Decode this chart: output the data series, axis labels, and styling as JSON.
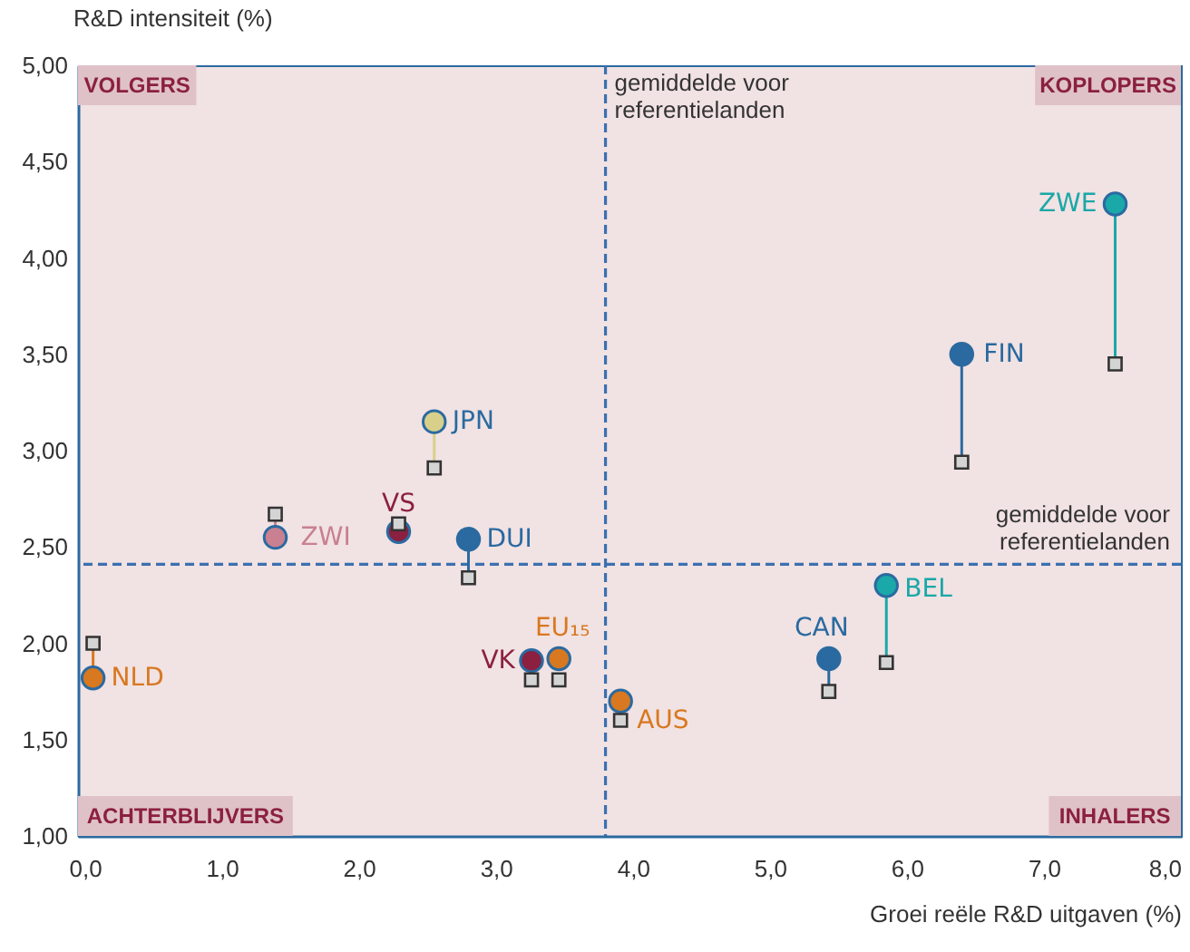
{
  "chart_data": {
    "type": "scatter",
    "xlabel": "Groei reële R&D uitgaven (%)",
    "ylabel": "R&D intensiteit (%)",
    "xlim": [
      -0.05,
      8.0
    ],
    "ylim": [
      1.0,
      5.0
    ],
    "xticks": [
      {
        "value": 0,
        "label": "0,0"
      },
      {
        "value": 1,
        "label": "1,0"
      },
      {
        "value": 2,
        "label": "2,0"
      },
      {
        "value": 3,
        "label": "3,0"
      },
      {
        "value": 4,
        "label": "4,0"
      },
      {
        "value": 5,
        "label": "5,0"
      },
      {
        "value": 6,
        "label": "6,0"
      },
      {
        "value": 7,
        "label": "7,0"
      },
      {
        "value": 8,
        "label": "8,0"
      }
    ],
    "yticks": [
      {
        "value": 1,
        "label": "1,00"
      },
      {
        "value": 1.5,
        "label": "1,50"
      },
      {
        "value": 2,
        "label": "2,00"
      },
      {
        "value": 2.5,
        "label": "2,50"
      },
      {
        "value": 3,
        "label": "3,00"
      },
      {
        "value": 3.5,
        "label": "3,50"
      },
      {
        "value": 4,
        "label": "4,00"
      },
      {
        "value": 4.5,
        "label": "4,50"
      },
      {
        "value": 5,
        "label": "5,00"
      }
    ],
    "series": [
      {
        "type": "line",
        "color": "#1aa8a8",
        "x": [
          7.52,
          7.52
        ],
        "values": [
          4.28,
          3.45
        ]
      },
      {
        "type": "line",
        "color": "#2a6aa0",
        "x": [
          6.4,
          6.4
        ],
        "values": [
          3.5,
          2.94
        ]
      },
      {
        "type": "line",
        "color": "#d8d08a",
        "x": [
          2.55,
          2.55
        ],
        "values": [
          3.15,
          2.91
        ]
      },
      {
        "type": "line",
        "color": "#c98090",
        "x": [
          1.39,
          1.39
        ],
        "values": [
          2.55,
          2.67
        ]
      },
      {
        "type": "line",
        "color": "#2a6aa0",
        "x": [
          2.8,
          2.8
        ],
        "values": [
          2.54,
          2.34
        ]
      },
      {
        "type": "line",
        "color": "#d87820",
        "x": [
          0.06,
          0.06
        ],
        "values": [
          1.82,
          2.0
        ]
      },
      {
        "type": "line",
        "color": "#2a6aa0",
        "x": [
          5.43,
          5.43
        ],
        "values": [
          1.92,
          1.75
        ]
      },
      {
        "type": "line",
        "color": "#1aa8a8",
        "x": [
          5.85,
          5.85
        ],
        "values": [
          2.3,
          1.9
        ]
      },
      {
        "marker": "circle",
        "x": [
          7.52,
          6.4,
          2.55,
          2.29,
          1.39,
          2.8,
          0.06,
          3.26,
          3.46,
          3.91,
          5.43,
          5.85
        ],
        "values": [
          4.28,
          3.5,
          3.15,
          2.58,
          2.55,
          2.54,
          1.82,
          1.91,
          1.92,
          1.7,
          1.92,
          2.3
        ],
        "colors": [
          "#1aa8a8",
          "#2a6aa0",
          "#d8d08a",
          "#8b2040",
          "#c98090",
          "#2a6aa0",
          "#d87820",
          "#8b2040",
          "#d87820",
          "#d87820",
          "#2a6aa0",
          "#1aa8a8"
        ]
      },
      {
        "marker": "square",
        "color": "#d4d4d4",
        "x": [
          7.52,
          6.4,
          2.55,
          2.29,
          1.39,
          2.8,
          0.06,
          3.26,
          3.46,
          3.91,
          5.43,
          5.85
        ],
        "values": [
          3.45,
          2.94,
          2.91,
          2.62,
          2.67,
          2.34,
          2.0,
          1.81,
          1.81,
          1.6,
          1.75,
          1.9
        ]
      }
    ],
    "ref_lines": [
      {
        "axis": "x",
        "value": 3.8,
        "label": "gemiddelde voor referentielanden",
        "color": "#3a70b0",
        "line_style": "dashed"
      },
      {
        "axis": "y",
        "value": 2.41,
        "label": "gemiddelde voor referentielanden",
        "color": "#3a70b0",
        "line_style": "dashed"
      }
    ],
    "annotations": [
      "VOLGERS",
      "KOPLOPERS",
      "ACHTERBLIJVERS",
      "INHALERS",
      {
        "text": "ZWE",
        "x": 7.52,
        "y": 4.28
      },
      {
        "text": "FIN",
        "x": 6.4,
        "y": 3.5
      },
      {
        "text": "JPN",
        "x": 2.55,
        "y": 3.15
      },
      {
        "text": "VS",
        "x": 2.29,
        "y": 2.58
      },
      {
        "text": "ZWI",
        "x": 1.39,
        "y": 2.55
      },
      {
        "text": "DUI",
        "x": 2.8,
        "y": 2.54
      },
      {
        "text": "NLD",
        "x": 0.06,
        "y": 1.82
      },
      {
        "text": "VK",
        "x": 3.26,
        "y": 1.91
      },
      {
        "text": "EU₁₅",
        "x": 3.46,
        "y": 1.92
      },
      {
        "text": "AUS",
        "x": 3.91,
        "y": 1.7
      },
      {
        "text": "CAN",
        "x": 5.43,
        "y": 1.92
      },
      {
        "text": "BEL",
        "x": 5.85,
        "y": 2.3
      }
    ]
  }
}
